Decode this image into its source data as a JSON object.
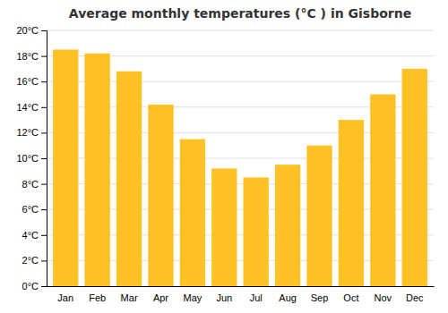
{
  "chart_data": {
    "type": "bar",
    "title": "Average monthly temperatures (°C ) in Gisborne",
    "categories": [
      "Jan",
      "Feb",
      "Mar",
      "Apr",
      "May",
      "Jun",
      "Jul",
      "Aug",
      "Sep",
      "Oct",
      "Nov",
      "Dec"
    ],
    "values": [
      18.5,
      18.2,
      16.8,
      14.2,
      11.5,
      9.2,
      8.5,
      9.5,
      11.0,
      13.0,
      15.0,
      17.0
    ],
    "color": "#FFC125",
    "ylim": [
      0,
      20
    ],
    "yticks": [
      {
        "value": 0,
        "label": "0°C"
      },
      {
        "value": 2,
        "label": "2°C"
      },
      {
        "value": 4,
        "label": "4°C"
      },
      {
        "value": 6,
        "label": "6°C"
      },
      {
        "value": 8,
        "label": "8°C"
      },
      {
        "value": 10,
        "label": "10°C"
      },
      {
        "value": 12,
        "label": "12°C"
      },
      {
        "value": 14,
        "label": "14°C"
      },
      {
        "value": 16,
        "label": "16°C"
      },
      {
        "value": 18,
        "label": "18°C"
      },
      {
        "value": 20,
        "label": "20°C"
      }
    ],
    "grid": true
  }
}
